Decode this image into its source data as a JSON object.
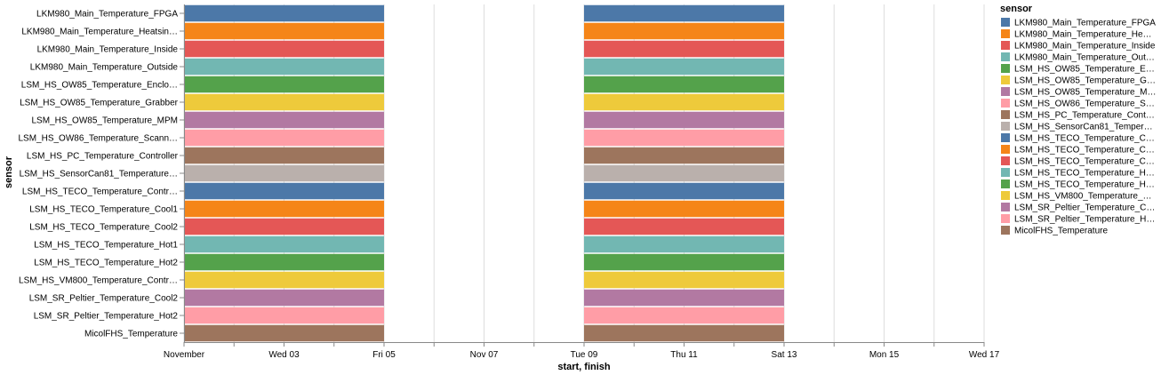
{
  "chart_data": {
    "type": "gantt",
    "title": "",
    "xlabel": "start, finish",
    "ylabel": "sensor",
    "x_domain": [
      "2021-11-01T00:00",
      "2021-11-17T00:00"
    ],
    "x_ticks": [
      {
        "date": "2021-11-01",
        "label": "November"
      },
      {
        "date": "2021-11-03",
        "label": "Wed 03"
      },
      {
        "date": "2021-11-05",
        "label": "Fri 05"
      },
      {
        "date": "2021-11-07",
        "label": "Nov 07"
      },
      {
        "date": "2021-11-09",
        "label": "Tue 09"
      },
      {
        "date": "2021-11-11",
        "label": "Thu 11"
      },
      {
        "date": "2021-11-13",
        "label": "Sat 13"
      },
      {
        "date": "2021-11-15",
        "label": "Mon 15"
      },
      {
        "date": "2021-11-17",
        "label": "Wed 17"
      }
    ],
    "grid": true,
    "legend_placement": "right",
    "legend_title": "sensor",
    "intervals": [
      {
        "start": "2021-11-01",
        "finish": "2021-11-05"
      },
      {
        "start": "2021-11-09",
        "finish": "2021-11-13"
      }
    ],
    "rows": [
      {
        "label": "LKM980_Main_Temperature_FPGA",
        "color": "#4c78a8"
      },
      {
        "label": "LKM980_Main_Temperature_Heatsin…",
        "color": "#f58518"
      },
      {
        "label": "LKM980_Main_Temperature_Inside",
        "color": "#e45756"
      },
      {
        "label": "LKM980_Main_Temperature_Outside",
        "color": "#72b7b2"
      },
      {
        "label": "LSM_HS_OW85_Temperature_Enclo…",
        "color": "#54a24b"
      },
      {
        "label": "LSM_HS_OW85_Temperature_Grabber",
        "color": "#eeca3b"
      },
      {
        "label": "LSM_HS_OW85_Temperature_MPM",
        "color": "#b279a2"
      },
      {
        "label": "LSM_HS_OW86_Temperature_Scann…",
        "color": "#ff9da6"
      },
      {
        "label": "LSM_HS_PC_Temperature_Controller",
        "color": "#9d755d"
      },
      {
        "label": "LSM_HS_SensorCan81_Temperature…",
        "color": "#bab0ac"
      },
      {
        "label": "LSM_HS_TECO_Temperature_Contr…",
        "color": "#4c78a8"
      },
      {
        "label": "LSM_HS_TECO_Temperature_Cool1",
        "color": "#f58518"
      },
      {
        "label": "LSM_HS_TECO_Temperature_Cool2",
        "color": "#e45756"
      },
      {
        "label": "LSM_HS_TECO_Temperature_Hot1",
        "color": "#72b7b2"
      },
      {
        "label": "LSM_HS_TECO_Temperature_Hot2",
        "color": "#54a24b"
      },
      {
        "label": "LSM_HS_VM800_Temperature_Contr…",
        "color": "#eeca3b"
      },
      {
        "label": "LSM_SR_Peltier_Temperature_Cool2",
        "color": "#b279a2"
      },
      {
        "label": "LSM_SR_Peltier_Temperature_Hot2",
        "color": "#ff9da6"
      },
      {
        "label": "MicolFHS_Temperature",
        "color": "#9d755d"
      }
    ],
    "legend": [
      {
        "label": "LKM980_Main_Temperature_FPGA",
        "color": "#4c78a8"
      },
      {
        "label": "LKM980_Main_Temperature_He…",
        "color": "#f58518"
      },
      {
        "label": "LKM980_Main_Temperature_Inside",
        "color": "#e45756"
      },
      {
        "label": "LKM980_Main_Temperature_Out…",
        "color": "#72b7b2"
      },
      {
        "label": "LSM_HS_OW85_Temperature_E…",
        "color": "#54a24b"
      },
      {
        "label": "LSM_HS_OW85_Temperature_G…",
        "color": "#eeca3b"
      },
      {
        "label": "LSM_HS_OW85_Temperature_M…",
        "color": "#b279a2"
      },
      {
        "label": "LSM_HS_OW86_Temperature_S…",
        "color": "#ff9da6"
      },
      {
        "label": "LSM_HS_PC_Temperature_Cont…",
        "color": "#9d755d"
      },
      {
        "label": "LSM_HS_SensorCan81_Temper…",
        "color": "#bab0ac"
      },
      {
        "label": "LSM_HS_TECO_Temperature_C…",
        "color": "#4c78a8"
      },
      {
        "label": "LSM_HS_TECO_Temperature_C…",
        "color": "#f58518"
      },
      {
        "label": "LSM_HS_TECO_Temperature_C…",
        "color": "#e45756"
      },
      {
        "label": "LSM_HS_TECO_Temperature_H…",
        "color": "#72b7b2"
      },
      {
        "label": "LSM_HS_TECO_Temperature_H…",
        "color": "#54a24b"
      },
      {
        "label": "LSM_HS_VM800_Temperature_…",
        "color": "#eeca3b"
      },
      {
        "label": "LSM_SR_Peltier_Temperature_C…",
        "color": "#b279a2"
      },
      {
        "label": "LSM_SR_Peltier_Temperature_H…",
        "color": "#ff9da6"
      },
      {
        "label": "MicolFHS_Temperature",
        "color": "#9d755d"
      }
    ]
  }
}
